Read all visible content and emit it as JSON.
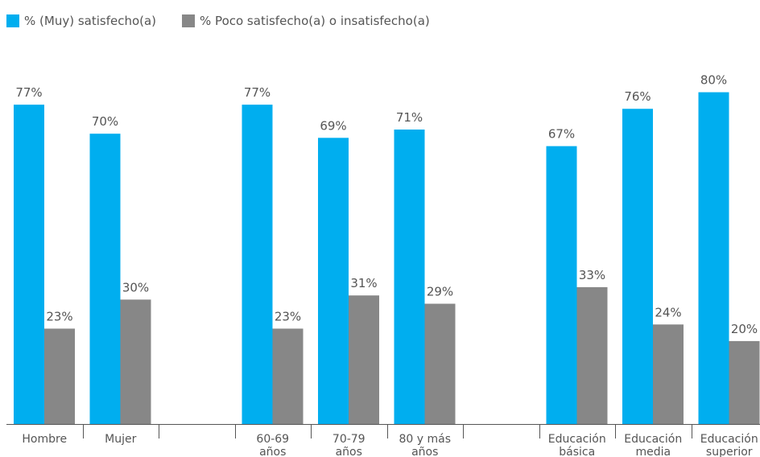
{
  "chart_data": {
    "type": "bar",
    "categories": [
      "Hombre",
      "Mujer",
      "",
      "60-69 años",
      "70-79 años",
      "80 y más años",
      "",
      "Educación básica",
      "Educación media",
      "Educación superior"
    ],
    "category_lines": [
      [
        "Hombre"
      ],
      [
        "Mujer"
      ],
      [],
      [
        "60-69",
        "años"
      ],
      [
        "70-79",
        "años"
      ],
      [
        "80 y más",
        "años"
      ],
      [],
      [
        "Educación",
        "básica"
      ],
      [
        "Educación",
        "media"
      ],
      [
        "Educación",
        "superior"
      ]
    ],
    "series": [
      {
        "name": "% (Muy) satisfecho(a)",
        "color": "#00AEEF",
        "values": [
          77,
          70,
          null,
          77,
          69,
          71,
          null,
          67,
          76,
          80
        ],
        "labels": [
          "77%",
          "70%",
          "",
          "77%",
          "69%",
          "71%",
          "",
          "67%",
          "76%",
          "80%"
        ]
      },
      {
        "name": "% Poco satisfecho(a) o insatisfecho(a)",
        "color": "#878787",
        "values": [
          23,
          30,
          null,
          23,
          31,
          29,
          null,
          33,
          24,
          20
        ],
        "labels": [
          "23%",
          "30%",
          "",
          "23%",
          "31%",
          "29%",
          "",
          "33%",
          "24%",
          "20%"
        ]
      }
    ],
    "ylim": [
      0,
      84
    ],
    "grid": false,
    "legend_position": "top-left"
  }
}
